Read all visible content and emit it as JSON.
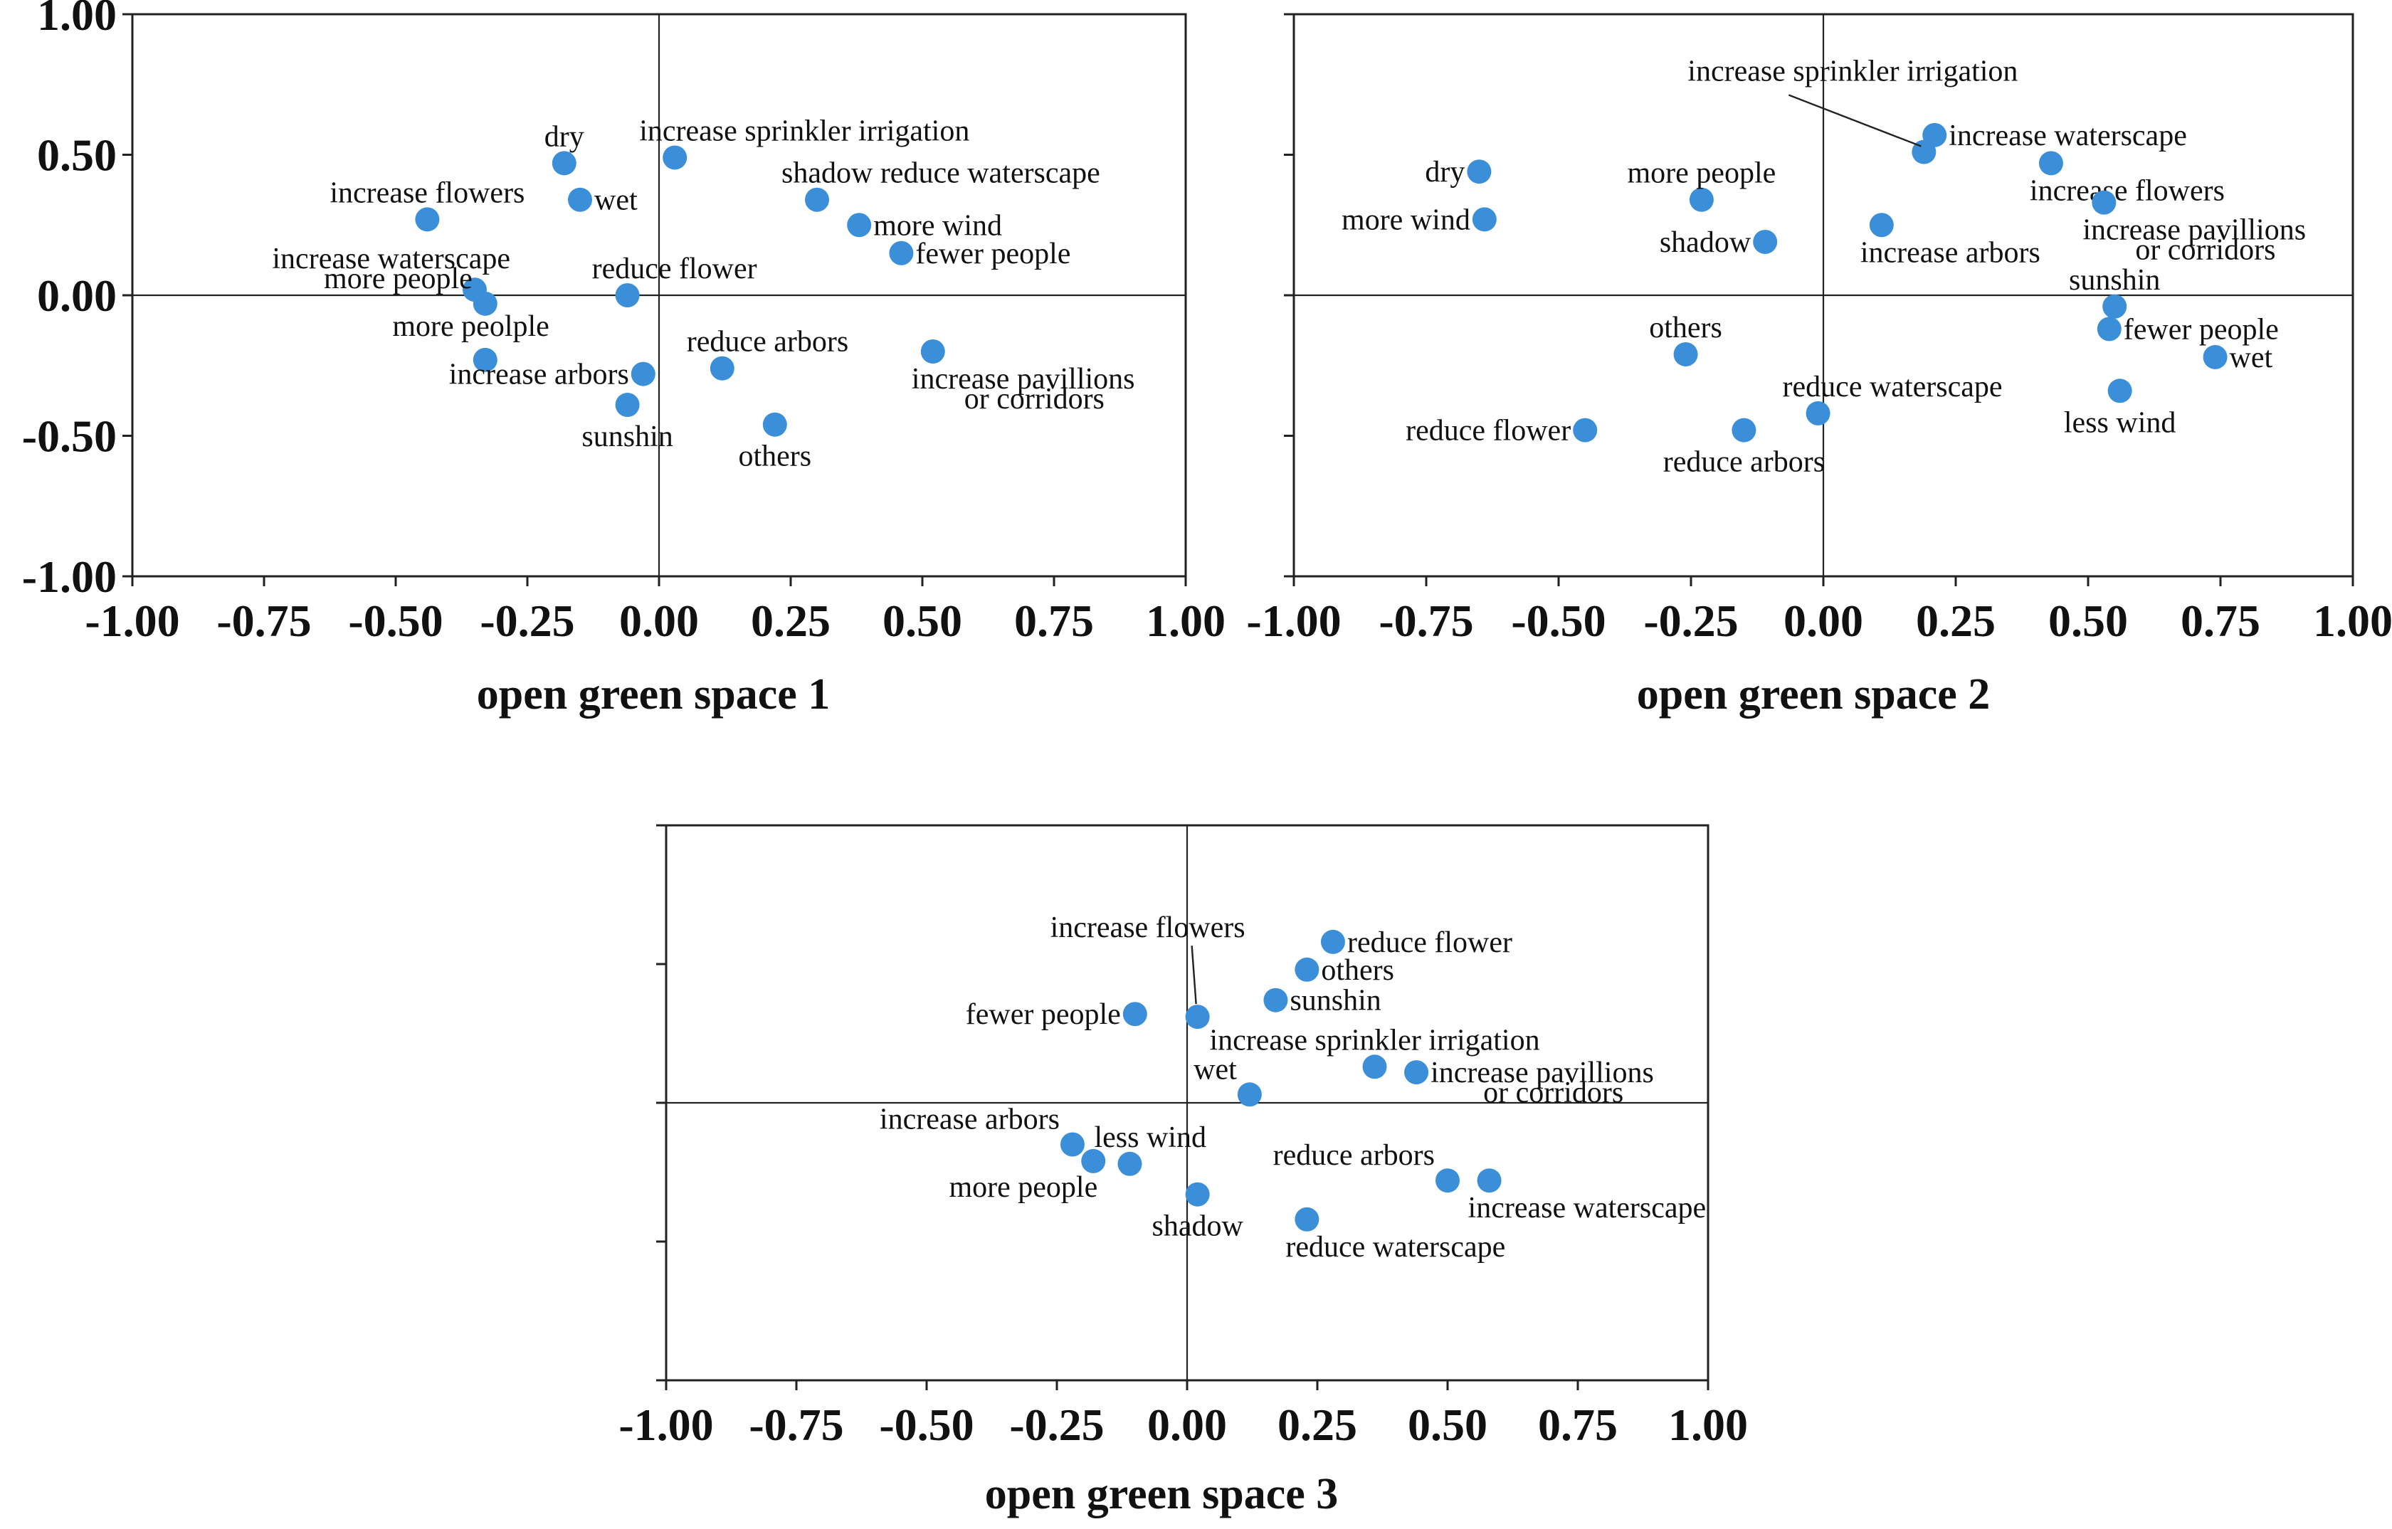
{
  "chart_data": [
    {
      "type": "scatter",
      "title": "",
      "xlabel": "open green space 1",
      "ylabel": "",
      "xlim": [
        -1.0,
        1.0
      ],
      "ylim": [
        -1.0,
        1.0
      ],
      "xticks": [
        "-1.00",
        "-0.75",
        "-0.50",
        "-0.25",
        "0.00",
        "0.25",
        "0.50",
        "0.75",
        "1.00"
      ],
      "yticks": [
        "1.00",
        "0.50",
        "0.00",
        "-0.50",
        "-1.00"
      ],
      "point_color": "#3A8FD8",
      "points": [
        {
          "x": 0.03,
          "y": 0.49,
          "label": "increase sprinkler irrigation",
          "lpos": "above-right"
        },
        {
          "x": -0.18,
          "y": 0.47,
          "label": "dry",
          "lpos": "above"
        },
        {
          "x": -0.15,
          "y": 0.34,
          "label": "wet",
          "lpos": "right"
        },
        {
          "x": -0.44,
          "y": 0.27,
          "label": "increase flowers",
          "lpos": "above"
        },
        {
          "x": 0.3,
          "y": 0.34,
          "label": "shadow reduce waterscape",
          "lpos": "above-right"
        },
        {
          "x": 0.38,
          "y": 0.25,
          "label": "more wind",
          "lpos": "right"
        },
        {
          "x": 0.46,
          "y": 0.15,
          "label": "fewer people",
          "lpos": "right"
        },
        {
          "x": -0.06,
          "y": 0.0,
          "label": "reduce flower",
          "lpos": "above-right"
        },
        {
          "x": -0.35,
          "y": 0.02,
          "label": "increase waterscape",
          "lpos": "above-left2"
        },
        {
          "x": -0.33,
          "y": -0.03,
          "label": "more people",
          "lpos": "above-left"
        },
        {
          "x": -0.33,
          "y": -0.23,
          "label": "more peolple",
          "lpos": "above-left3"
        },
        {
          "x": -0.03,
          "y": -0.28,
          "label": "increase arbors",
          "lpos": "left"
        },
        {
          "x": 0.12,
          "y": -0.26,
          "label": "reduce arbors",
          "lpos": "above-right"
        },
        {
          "x": 0.52,
          "y": -0.2,
          "label": "increase pavillions",
          "label2": "or corridors",
          "lpos": "below-right"
        },
        {
          "x": -0.06,
          "y": -0.39,
          "label": "sunshin",
          "lpos": "below"
        },
        {
          "x": 0.22,
          "y": -0.46,
          "label": "others",
          "lpos": "below"
        }
      ]
    },
    {
      "type": "scatter",
      "title": "",
      "xlabel": "open green space 2",
      "ylabel": "",
      "xlim": [
        -1.0,
        1.0
      ],
      "ylim": [
        -1.0,
        1.0
      ],
      "xticks": [
        "-1.00",
        "-0.75",
        "-0.50",
        "-0.25",
        "0.00",
        "0.25",
        "0.50",
        "0.75",
        "1.00"
      ],
      "point_color": "#3A8FD8",
      "points": [
        {
          "x": -0.65,
          "y": 0.44,
          "label": "dry",
          "lpos": "left"
        },
        {
          "x": -0.64,
          "y": 0.27,
          "label": "more wind",
          "lpos": "left"
        },
        {
          "x": -0.23,
          "y": 0.34,
          "label": "more people",
          "lpos": "above"
        },
        {
          "x": -0.11,
          "y": 0.19,
          "label": "shadow",
          "lpos": "left"
        },
        {
          "x": 0.11,
          "y": 0.25,
          "label": "increase arbors",
          "lpos": "below-right"
        },
        {
          "x": 0.19,
          "y": 0.51,
          "label": "increase sprinkler irrigation",
          "lpos": "leader"
        },
        {
          "x": 0.21,
          "y": 0.57,
          "label": "increase waterscape",
          "lpos": "right"
        },
        {
          "x": 0.43,
          "y": 0.47,
          "label": "increase flowers",
          "lpos": "below-right"
        },
        {
          "x": 0.53,
          "y": 0.33,
          "label": "increase pavillions",
          "label2": "or corridors",
          "lpos": "below-right"
        },
        {
          "x": 0.55,
          "y": -0.04,
          "label": "sunshin",
          "lpos": "above"
        },
        {
          "x": 0.54,
          "y": -0.12,
          "label": "fewer people",
          "lpos": "right"
        },
        {
          "x": 0.74,
          "y": -0.22,
          "label": "wet",
          "lpos": "right"
        },
        {
          "x": 0.56,
          "y": -0.34,
          "label": "less wind",
          "lpos": "below"
        },
        {
          "x": -0.26,
          "y": -0.21,
          "label": "others",
          "lpos": "above"
        },
        {
          "x": -0.45,
          "y": -0.48,
          "label": "reduce flower",
          "lpos": "left"
        },
        {
          "x": -0.15,
          "y": -0.48,
          "label": "reduce arbors",
          "lpos": "below"
        },
        {
          "x": -0.01,
          "y": -0.42,
          "label": "reduce waterscape",
          "lpos": "above-right"
        }
      ]
    },
    {
      "type": "scatter",
      "title": "",
      "xlabel": "open green space 3",
      "ylabel": "",
      "xlim": [
        -1.0,
        1.0
      ],
      "ylim": [
        -1.0,
        1.0
      ],
      "xticks": [
        "-1.00",
        "-0.75",
        "-0.50",
        "-0.25",
        "0.00",
        "0.25",
        "0.50",
        "0.75",
        "1.00"
      ],
      "point_color": "#3A8FD8",
      "points": [
        {
          "x": 0.28,
          "y": 0.58,
          "label": "reduce flower",
          "lpos": "right"
        },
        {
          "x": 0.23,
          "y": 0.48,
          "label": "others",
          "lpos": "right"
        },
        {
          "x": 0.17,
          "y": 0.37,
          "label": "sunshin",
          "lpos": "right"
        },
        {
          "x": 0.02,
          "y": 0.31,
          "label": "increase flowers",
          "lpos": "leader"
        },
        {
          "x": -0.1,
          "y": 0.32,
          "label": "fewer people",
          "lpos": "left"
        },
        {
          "x": 0.36,
          "y": 0.13,
          "label": "increase sprinkler irrigation",
          "lpos": "above"
        },
        {
          "x": 0.44,
          "y": 0.11,
          "label": "increase pavillions",
          "label2": "or corridors",
          "lpos": "right"
        },
        {
          "x": 0.12,
          "y": 0.03,
          "label": "wet",
          "lpos": "above-left"
        },
        {
          "x": -0.22,
          "y": -0.15,
          "label": "increase arbors",
          "lpos": "above-left"
        },
        {
          "x": -0.18,
          "y": -0.21,
          "label": "more people",
          "lpos": "below-left"
        },
        {
          "x": -0.11,
          "y": -0.22,
          "label": "less wind",
          "lpos": "above-right"
        },
        {
          "x": 0.02,
          "y": -0.33,
          "label": "shadow",
          "lpos": "below"
        },
        {
          "x": 0.23,
          "y": -0.42,
          "label": "reduce waterscape",
          "lpos": "below-right"
        },
        {
          "x": 0.5,
          "y": -0.28,
          "label": "reduce arbors",
          "lpos": "above-left"
        },
        {
          "x": 0.58,
          "y": -0.28,
          "label": "increase waterscape",
          "lpos": "below-right"
        }
      ]
    }
  ]
}
